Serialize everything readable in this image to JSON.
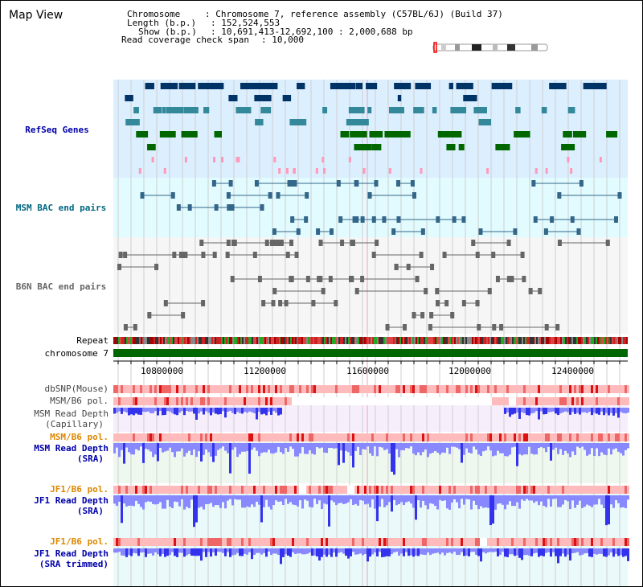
{
  "page": {
    "title": "Map View"
  },
  "info": {
    "chromosome_label": "Chromosome",
    "chromosome_value": ": Chromosome 7, reference assembly (C57BL/6J) (Build 37)",
    "length_label": "Length (b.p.)",
    "length_value": ": 152,524,553",
    "show_label": "Show (b.p.)",
    "show_value": ": 10,691,413-12,692,100 : 2,000,688 bp",
    "coverage_label": "Read coverage check span",
    "coverage_value": ": 10,000"
  },
  "tracks": {
    "refseq_genes": "RefSeq Genes",
    "msm_bac": "MSM BAC end pairs",
    "b6n_bac": "B6N BAC end pairs",
    "repeat": "Repeat",
    "chromosome": "chromosome 7",
    "dbsnp": "dbSNP(Mouse)",
    "msm_b6_pol_1": "MSM/B6 pol.",
    "msm_read_depth_cap_1": "MSM Read Depth",
    "msm_read_depth_cap_2": "(Capillary)",
    "msm_b6_pol_2": "MSM/B6 pol.",
    "msm_read_depth_sra_1": "MSM Read Depth",
    "msm_read_depth_sra_2": "(SRA)",
    "jf1_b6_pol_1": "JF1/B6 pol.",
    "jf1_read_depth_sra_1": "JF1 Read Depth",
    "jf1_read_depth_sra_2": "(SRA)",
    "jf1_b6_pol_2": "JF1/B6 pol.",
    "jf1_read_depth_trim_1": "JF1 Read Depth",
    "jf1_read_depth_trim_2": "(SRA trimmed)"
  },
  "axis": {
    "ticks": [
      "10800000",
      "11200000",
      "11600000",
      "12000000",
      "12400000"
    ]
  },
  "colors": {
    "refseq_bg": "#dcefff",
    "msm_bac_bg": "#e2fbff",
    "b6n_bac_bg": "#f6f6f6",
    "chromosome_bar": "#006600",
    "label_blue": "#0000aa",
    "label_teal": "#006680",
    "label_gray": "#666666",
    "label_orange": "#dd8800",
    "depth_blue": "#5555ff"
  }
}
